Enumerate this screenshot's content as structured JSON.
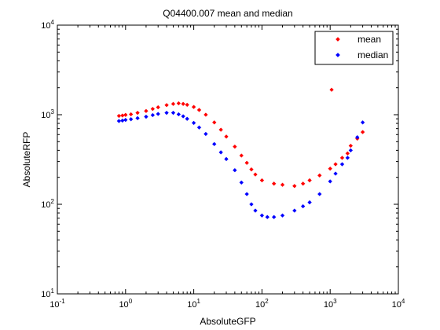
{
  "chart_data": {
    "type": "scatter",
    "title": "Q04400.007 mean and median",
    "xlabel": "AbsoluteGFP",
    "ylabel": "AbsoluteRFP",
    "x_scale": "log",
    "y_scale": "log",
    "xlim": [
      0.1,
      10000
    ],
    "ylim": [
      10,
      10000
    ],
    "x_ticks": [
      {
        "base": "10",
        "exp": "-1",
        "value": 0.1
      },
      {
        "base": "10",
        "exp": "0",
        "value": 1
      },
      {
        "base": "10",
        "exp": "1",
        "value": 10
      },
      {
        "base": "10",
        "exp": "2",
        "value": 100
      },
      {
        "base": "10",
        "exp": "3",
        "value": 1000
      },
      {
        "base": "10",
        "exp": "4",
        "value": 10000
      }
    ],
    "y_ticks": [
      {
        "base": "10",
        "exp": "1",
        "value": 10
      },
      {
        "base": "10",
        "exp": "2",
        "value": 100
      },
      {
        "base": "10",
        "exp": "3",
        "value": 1000
      },
      {
        "base": "10",
        "exp": "4",
        "value": 10000
      }
    ],
    "grid": false,
    "legend_position": "top-right",
    "series": [
      {
        "name": "mean",
        "color": "#ff0000",
        "points": [
          [
            0.8,
            970
          ],
          [
            0.9,
            980
          ],
          [
            1.0,
            995
          ],
          [
            1.2,
            1010
          ],
          [
            1.5,
            1050
          ],
          [
            2.0,
            1100
          ],
          [
            2.5,
            1160
          ],
          [
            3.0,
            1210
          ],
          [
            4.0,
            1280
          ],
          [
            5.0,
            1320
          ],
          [
            6.0,
            1340
          ],
          [
            7.0,
            1320
          ],
          [
            8.0,
            1290
          ],
          [
            10.0,
            1220
          ],
          [
            12.0,
            1130
          ],
          [
            15.0,
            1000
          ],
          [
            20.0,
            820
          ],
          [
            25.0,
            680
          ],
          [
            30.0,
            570
          ],
          [
            40.0,
            440
          ],
          [
            50.0,
            350
          ],
          [
            60.0,
            290
          ],
          [
            70.0,
            245
          ],
          [
            80.0,
            215
          ],
          [
            100.0,
            185
          ],
          [
            150.0,
            170
          ],
          [
            200.0,
            165
          ],
          [
            300.0,
            160
          ],
          [
            400.0,
            170
          ],
          [
            500.0,
            185
          ],
          [
            700.0,
            210
          ],
          [
            1000.0,
            250
          ],
          [
            1200.0,
            280
          ],
          [
            1500.0,
            330
          ],
          [
            1800.0,
            370
          ],
          [
            2000.0,
            450
          ],
          [
            2500.0,
            540
          ],
          [
            3000.0,
            640
          ],
          [
            1050.0,
            1900
          ]
        ]
      },
      {
        "name": "median",
        "color": "#0000ff",
        "points": [
          [
            0.8,
            850
          ],
          [
            0.9,
            860
          ],
          [
            1.0,
            875
          ],
          [
            1.2,
            890
          ],
          [
            1.5,
            915
          ],
          [
            2.0,
            950
          ],
          [
            2.5,
            990
          ],
          [
            3.0,
            1020
          ],
          [
            4.0,
            1050
          ],
          [
            5.0,
            1050
          ],
          [
            6.0,
            1010
          ],
          [
            7.0,
            960
          ],
          [
            8.0,
            900
          ],
          [
            10.0,
            810
          ],
          [
            12.0,
            720
          ],
          [
            15.0,
            610
          ],
          [
            20.0,
            470
          ],
          [
            25.0,
            380
          ],
          [
            30.0,
            320
          ],
          [
            40.0,
            240
          ],
          [
            50.0,
            175
          ],
          [
            60.0,
            130
          ],
          [
            70.0,
            100
          ],
          [
            80.0,
            85
          ],
          [
            100.0,
            75
          ],
          [
            120.0,
            72
          ],
          [
            150.0,
            72
          ],
          [
            200.0,
            75
          ],
          [
            300.0,
            85
          ],
          [
            400.0,
            95
          ],
          [
            500.0,
            105
          ],
          [
            700.0,
            130
          ],
          [
            1000.0,
            180
          ],
          [
            1200.0,
            220
          ],
          [
            1500.0,
            280
          ],
          [
            1800.0,
            330
          ],
          [
            2000.0,
            400
          ],
          [
            2500.0,
            560
          ],
          [
            3000.0,
            820
          ]
        ]
      }
    ]
  }
}
